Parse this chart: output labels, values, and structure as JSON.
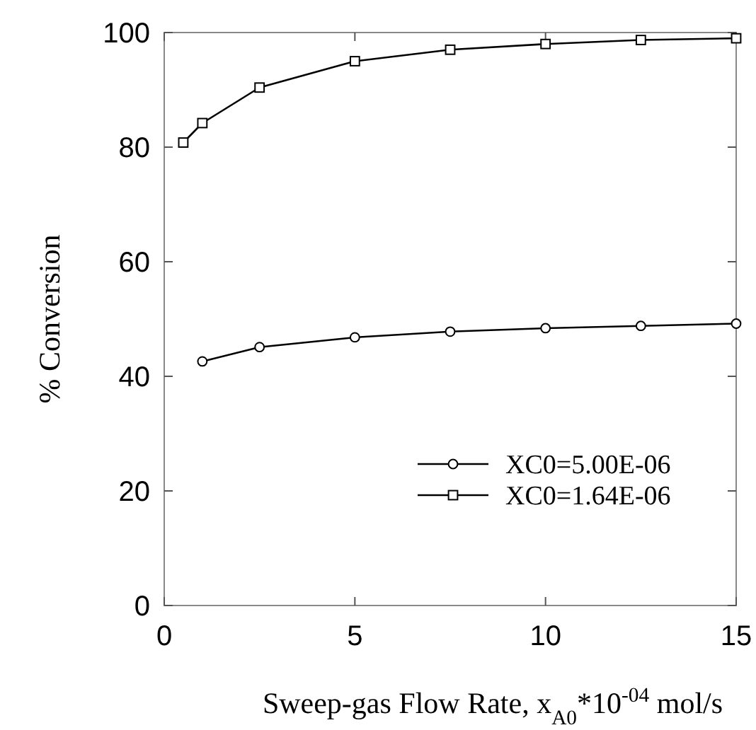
{
  "chart_data": {
    "type": "line",
    "xlabel": "Sweep-gas  Flow Rate, x$_{A0}$*10$^{-04}$ mol/s",
    "ylabel": "% Conversion",
    "xlim": [
      0,
      15
    ],
    "xticks": [
      0,
      5,
      10,
      15
    ],
    "ylim": [
      0,
      100
    ],
    "yticks": [
      0,
      20,
      40,
      60,
      80,
      100
    ],
    "legend": "bottom right",
    "grid": false,
    "series": [
      {
        "name": "XC0=5.00E-06",
        "color": "#000000",
        "marker": "circle",
        "x": [
          1,
          2.5,
          5,
          7.5,
          10,
          12.5,
          15
        ],
        "values": [
          42.6,
          45.1,
          46.8,
          47.8,
          48.4,
          48.8,
          49.2
        ]
      },
      {
        "name": "XC0=1.64E-06",
        "color": "#000000",
        "marker": "square",
        "x": [
          0.5,
          1,
          2.5,
          5,
          7.5,
          10,
          12.5,
          15
        ],
        "values": [
          80.8,
          84.2,
          90.4,
          95.0,
          97.0,
          98.0,
          98.7,
          99.0
        ]
      }
    ]
  }
}
